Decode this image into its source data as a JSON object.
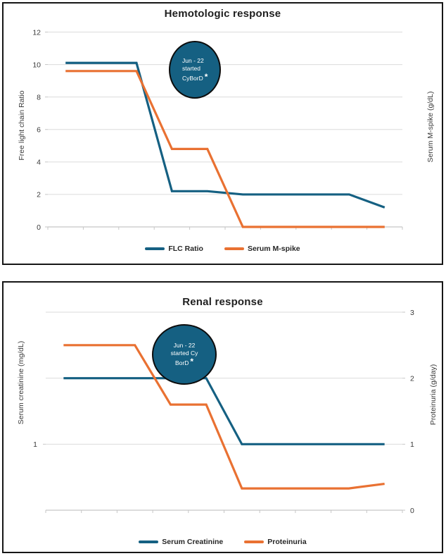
{
  "colors": {
    "series_teal": "#156082",
    "series_orange": "#E97132",
    "gridline": "#DBDBDB",
    "axis_line": "#C6C6C6",
    "tick_text": "#3A3A3A",
    "title_text": "#1F1F1F",
    "panel_border": "#161616",
    "bubble_fill": "#156082",
    "bubble_border": "#0C0C0C",
    "bubble_text": "#FFFFFF"
  },
  "chart_data": [
    {
      "type": "line",
      "title": "Hemotologic response",
      "left_axis_label": "Free light chain Ratio",
      "right_axis_label": "Serum M-spike (g/dL)",
      "x": [
        1,
        2,
        3,
        4,
        5,
        6,
        7,
        8,
        9,
        10
      ],
      "series": [
        {
          "name": "FLC Ratio",
          "color": "#156082",
          "values": [
            10.1,
            10.1,
            10.1,
            2.2,
            2.2,
            2.0,
            2.0,
            2.0,
            2.0,
            1.2
          ]
        },
        {
          "name": "Serum M-spike",
          "color": "#E97132",
          "values": [
            9.6,
            9.6,
            9.6,
            4.8,
            4.8,
            0,
            0,
            0,
            0,
            0
          ]
        }
      ],
      "ylim": [
        0,
        12
      ],
      "yticks_left": [
        0,
        2,
        4,
        6,
        8,
        10,
        12
      ],
      "yticks_right": [],
      "grid": true,
      "legend_position": "bottom",
      "annotation": {
        "lines": [
          "Jun - 22",
          "started",
          "CyBorD"
        ],
        "asterisk": "*"
      }
    },
    {
      "type": "line",
      "title": "Renal response",
      "left_axis_label": "Serum creatinine (mg/dL)",
      "right_axis_label": "Proteinuria (g/day)",
      "x": [
        1,
        2,
        3,
        4,
        5,
        6,
        7,
        8,
        9,
        10
      ],
      "series": [
        {
          "name": "Serum Creatinine",
          "color": "#156082",
          "values": [
            2,
            2,
            2,
            2,
            2,
            1,
            1,
            1,
            1,
            1
          ]
        },
        {
          "name": "Proteinuria",
          "color": "#E97132",
          "values": [
            2.5,
            2.5,
            2.5,
            1.6,
            1.6,
            0.33,
            0.33,
            0.33,
            0.33,
            0.4
          ]
        }
      ],
      "ylim": [
        0,
        3
      ],
      "yticks_left": [
        1
      ],
      "yticks_right": [
        0,
        1,
        2,
        3
      ],
      "grid": true,
      "legend_position": "bottom",
      "annotation": {
        "lines": [
          "Jun - 22",
          "started Cy",
          "BorD"
        ],
        "asterisk": "*"
      }
    }
  ]
}
